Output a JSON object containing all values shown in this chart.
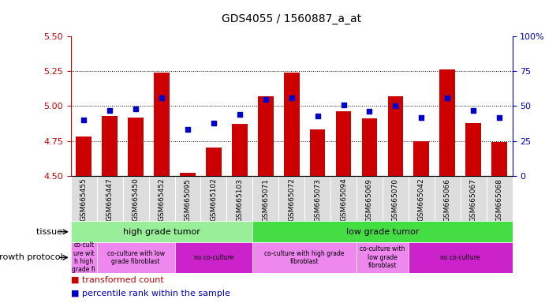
{
  "title": "GDS4055 / 1560887_a_at",
  "samples": [
    "GSM665455",
    "GSM665447",
    "GSM665450",
    "GSM665452",
    "GSM665095",
    "GSM665102",
    "GSM665103",
    "GSM665071",
    "GSM665072",
    "GSM665073",
    "GSM665094",
    "GSM665069",
    "GSM665070",
    "GSM665042",
    "GSM665066",
    "GSM665067",
    "GSM665068"
  ],
  "red_values": [
    4.78,
    4.93,
    4.92,
    5.24,
    4.52,
    4.7,
    4.87,
    5.07,
    5.24,
    4.83,
    4.96,
    4.91,
    5.07,
    4.75,
    5.26,
    4.88,
    4.74
  ],
  "blue_values": [
    40,
    47,
    48,
    56,
    33,
    38,
    44,
    55,
    56,
    43,
    51,
    46,
    50,
    42,
    56,
    47,
    42
  ],
  "ymin": 4.5,
  "ymax": 5.5,
  "yticks_left": [
    4.5,
    4.75,
    5.0,
    5.25,
    5.5
  ],
  "yticks_right": [
    0,
    25,
    50,
    75,
    100
  ],
  "tissue_groups": [
    {
      "label": "high grade tumor",
      "start": 0,
      "end": 7,
      "color": "#99EE99"
    },
    {
      "label": "low grade tumor",
      "start": 7,
      "end": 17,
      "color": "#44DD44"
    }
  ],
  "protocol_groups": [
    {
      "label": "co-cult\nure wit\nh high\ngrade fi",
      "start": 0,
      "end": 1,
      "color": "#EE88EE"
    },
    {
      "label": "co-culture with low\ngrade fibroblast",
      "start": 1,
      "end": 4,
      "color": "#EE88EE"
    },
    {
      "label": "no co-culture",
      "start": 4,
      "end": 7,
      "color": "#CC22CC"
    },
    {
      "label": "co-culture with high grade\nfibroblast",
      "start": 7,
      "end": 11,
      "color": "#EE88EE"
    },
    {
      "label": "co-culture with\nlow grade\nfibroblast",
      "start": 11,
      "end": 13,
      "color": "#EE88EE"
    },
    {
      "label": "no co-culture",
      "start": 13,
      "end": 17,
      "color": "#CC22CC"
    }
  ],
  "bar_color": "#CC0000",
  "dot_color": "#0000CC",
  "left_axis_color": "#CC0000",
  "right_axis_color": "#0000CC",
  "xtick_bg": "#DDDDDD",
  "legend_red": "transformed count",
  "legend_blue": "percentile rank within the sample",
  "tissue_label": "tissue",
  "protocol_label": "growth protocol"
}
